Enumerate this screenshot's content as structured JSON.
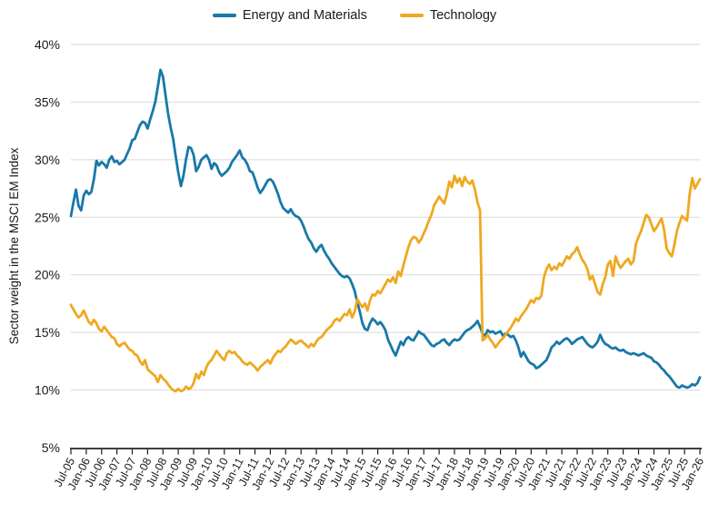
{
  "chart_data": {
    "type": "line",
    "title": "",
    "xlabel": "",
    "ylabel": "Sector weight in the MSCI EM Index",
    "ylim": [
      5,
      40
    ],
    "grid": "horizontal",
    "legend_position": "top-center",
    "x_start": "2005-07",
    "x_frequency": "monthly",
    "y_tick_values": [
      40,
      35,
      30,
      25,
      20,
      15,
      10,
      5
    ],
    "y_tick_labels": [
      "40%",
      "35%",
      "30%",
      "25%",
      "20%",
      "15%",
      "10%",
      "5%"
    ],
    "x_tick_labels": [
      "Jul-05",
      "Jan-06",
      "Jul-06",
      "Jan-07",
      "Jul-07",
      "Jan-08",
      "Jul-08",
      "Jan-09",
      "Jul-09",
      "Jan-10",
      "Jul-10",
      "Jan-11",
      "Jul-11",
      "Jan-12",
      "Jul-12",
      "Jan-13",
      "Jul-13",
      "Jan-14",
      "Jul-14",
      "Jan-15",
      "Jul-15",
      "Jan-16",
      "Jul-16",
      "Jan-17",
      "Jul-17",
      "Jan-18",
      "Jul-18",
      "Jan-19",
      "Jul-19",
      "Jan-20",
      "Jul-20",
      "Jan-21",
      "Jul-21",
      "Jan-22",
      "Jul-22",
      "Jan-23",
      "Jul-23",
      "Jan-24",
      "Jul-24",
      "Jan-25",
      "Jul-25",
      "Jan-26"
    ],
    "series": [
      {
        "name": "Energy and Materials",
        "color": "#1878A8",
        "values": [
          25.1,
          26.3,
          27.4,
          26.0,
          25.6,
          26.9,
          27.3,
          27.0,
          27.2,
          28.3,
          29.9,
          29.5,
          29.8,
          29.6,
          29.3,
          30.0,
          30.3,
          29.8,
          29.9,
          29.6,
          29.8,
          30.0,
          30.5,
          31.0,
          31.7,
          31.8,
          32.4,
          33.0,
          33.3,
          33.2,
          32.7,
          33.5,
          34.2,
          35.0,
          36.3,
          37.8,
          37.2,
          35.6,
          34.0,
          32.8,
          31.8,
          30.3,
          28.9,
          27.7,
          28.6,
          30.0,
          31.1,
          31.0,
          30.4,
          29.0,
          29.4,
          30.0,
          30.2,
          30.4,
          30.0,
          29.2,
          29.7,
          29.5,
          28.9,
          28.6,
          28.8,
          29.0,
          29.3,
          29.8,
          30.1,
          30.4,
          30.8,
          30.2,
          30.0,
          29.6,
          29.0,
          28.9,
          28.3,
          27.6,
          27.1,
          27.4,
          27.8,
          28.2,
          28.3,
          28.1,
          27.6,
          27.0,
          26.3,
          25.8,
          25.6,
          25.4,
          25.7,
          25.3,
          25.1,
          25.0,
          24.7,
          24.2,
          23.6,
          23.1,
          22.8,
          22.3,
          22.0,
          22.4,
          22.6,
          22.1,
          21.7,
          21.4,
          21.0,
          20.7,
          20.4,
          20.1,
          19.9,
          19.8,
          19.9,
          19.7,
          19.2,
          18.6,
          17.6,
          16.8,
          15.8,
          15.3,
          15.2,
          15.8,
          16.2,
          16.0,
          15.7,
          15.9,
          15.6,
          15.2,
          14.4,
          13.9,
          13.4,
          13.0,
          13.6,
          14.2,
          13.9,
          14.4,
          14.6,
          14.4,
          14.3,
          14.7,
          15.1,
          14.9,
          14.8,
          14.5,
          14.2,
          13.9,
          13.8,
          14.0,
          14.1,
          14.3,
          14.4,
          14.1,
          13.9,
          14.2,
          14.4,
          14.3,
          14.4,
          14.7,
          15.0,
          15.2,
          15.3,
          15.5,
          15.7,
          16.0,
          15.5,
          14.9,
          14.7,
          15.2,
          15.0,
          15.1,
          14.9,
          15.0,
          15.1,
          14.7,
          14.9,
          14.8,
          14.6,
          14.7,
          14.3,
          13.7,
          12.9,
          13.3,
          12.9,
          12.5,
          12.3,
          12.2,
          11.9,
          12.0,
          12.2,
          12.4,
          12.6,
          13.1,
          13.7,
          13.9,
          14.2,
          14.0,
          14.2,
          14.4,
          14.5,
          14.3,
          14.0,
          14.2,
          14.4,
          14.5,
          14.6,
          14.3,
          14.0,
          13.8,
          13.7,
          13.9,
          14.2,
          14.8,
          14.3,
          14.0,
          13.9,
          13.7,
          13.6,
          13.7,
          13.5,
          13.4,
          13.5,
          13.3,
          13.2,
          13.1,
          13.2,
          13.1,
          13.0,
          13.1,
          13.2,
          13.0,
          12.9,
          12.8,
          12.5,
          12.4,
          12.2,
          11.9,
          11.7,
          11.4,
          11.2,
          10.9,
          10.6,
          10.3,
          10.2,
          10.4,
          10.3,
          10.2,
          10.3,
          10.5,
          10.4,
          10.6,
          11.1
        ]
      },
      {
        "name": "Technology",
        "color": "#EFA820",
        "values": [
          17.4,
          17.0,
          16.6,
          16.3,
          16.5,
          16.9,
          16.4,
          15.9,
          15.7,
          16.1,
          15.8,
          15.3,
          15.1,
          15.5,
          15.2,
          14.9,
          14.6,
          14.5,
          14.0,
          13.8,
          14.0,
          14.1,
          13.8,
          13.5,
          13.4,
          13.1,
          13.0,
          12.5,
          12.2,
          12.6,
          11.8,
          11.6,
          11.4,
          11.2,
          10.7,
          11.3,
          11.0,
          10.8,
          10.5,
          10.2,
          10.0,
          9.9,
          10.1,
          9.9,
          10.0,
          10.3,
          10.1,
          10.2,
          10.6,
          11.4,
          11.0,
          11.6,
          11.3,
          12.0,
          12.4,
          12.6,
          13.0,
          13.4,
          13.1,
          12.8,
          12.6,
          13.2,
          13.4,
          13.2,
          13.3,
          13.0,
          12.8,
          12.5,
          12.3,
          12.2,
          12.4,
          12.2,
          12.0,
          11.7,
          12.0,
          12.2,
          12.4,
          12.6,
          12.3,
          12.8,
          13.1,
          13.4,
          13.3,
          13.6,
          13.8,
          14.1,
          14.4,
          14.2,
          14.0,
          14.2,
          14.3,
          14.1,
          13.9,
          13.7,
          14.0,
          13.8,
          14.2,
          14.5,
          14.6,
          14.9,
          15.2,
          15.4,
          15.6,
          16.0,
          16.2,
          16.0,
          16.3,
          16.6,
          16.5,
          17.0,
          16.3,
          16.8,
          17.9,
          17.5,
          17.2,
          17.5,
          16.9,
          17.8,
          18.3,
          18.2,
          18.6,
          18.4,
          18.8,
          19.2,
          19.6,
          19.4,
          19.8,
          19.3,
          20.3,
          19.9,
          20.8,
          21.6,
          22.4,
          23.0,
          23.3,
          23.2,
          22.8,
          23.1,
          23.6,
          24.1,
          24.7,
          25.2,
          26.0,
          26.4,
          26.8,
          26.5,
          26.2,
          27.0,
          28.1,
          27.6,
          28.6,
          28.0,
          28.4,
          27.7,
          28.5,
          28.1,
          27.9,
          28.2,
          27.4,
          26.3,
          25.6,
          14.3,
          14.5,
          14.8,
          14.4,
          14.1,
          13.7,
          14.0,
          14.3,
          14.5,
          14.8,
          15.1,
          15.4,
          15.8,
          16.2,
          16.0,
          16.4,
          16.7,
          17.0,
          17.4,
          17.8,
          17.6,
          18.0,
          17.9,
          18.2,
          19.8,
          20.5,
          20.9,
          20.4,
          20.7,
          20.5,
          21.0,
          20.8,
          21.2,
          21.6,
          21.4,
          21.8,
          22.0,
          22.4,
          21.8,
          21.3,
          21.0,
          20.5,
          19.6,
          19.9,
          19.2,
          18.5,
          18.3,
          19.2,
          19.8,
          20.9,
          21.2,
          19.9,
          21.6,
          21.0,
          20.6,
          20.9,
          21.2,
          21.4,
          20.9,
          21.2,
          22.7,
          23.3,
          23.8,
          24.5,
          25.2,
          25.0,
          24.4,
          23.8,
          24.1,
          24.5,
          24.9,
          23.9,
          22.3,
          21.9,
          21.6,
          22.6,
          23.8,
          24.5,
          25.1,
          24.9,
          24.7,
          27.0,
          28.4,
          27.5,
          27.9,
          28.3
        ]
      }
    ],
    "style": {
      "grid_color": "#D9D9D9",
      "axis_color": "#000000",
      "text_color": "#1A1A1A",
      "background": "#FFFFFF",
      "line_width": 2.8
    }
  }
}
